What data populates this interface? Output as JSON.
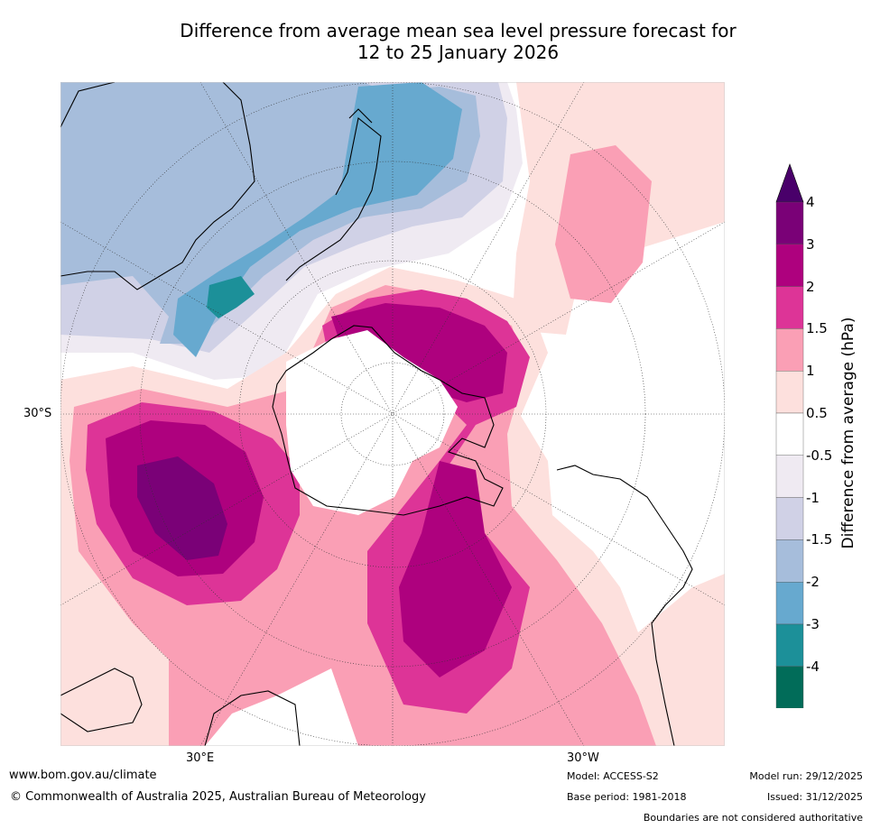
{
  "title_line1": "Difference from average mean sea level pressure forecast for",
  "title_line2": "12 to 25 January 2026",
  "map": {
    "lat_label_left": "30°S",
    "lon_label_east": "30°E",
    "lon_label_west": "30°W"
  },
  "colorbar": {
    "label": "Difference from average (hPa)",
    "ticks": [
      "4",
      "3",
      "2",
      "1.5",
      "1",
      "0.5",
      "-0.5",
      "-1",
      "-1.5",
      "-2",
      "-3",
      "-4"
    ],
    "colors": [
      "#7a0177",
      "#ae017e",
      "#dd3497",
      "#fa9fb5",
      "#fde0dd",
      "#ffffff",
      "#efeaf2",
      "#d0d1e6",
      "#a6bddb",
      "#67a9cf",
      "#1c9099",
      "#016c59"
    ],
    "over_color": "#49006a",
    "under_color": "#016450"
  },
  "footer": {
    "website": "www.bom.gov.au/climate",
    "copyright": "© Commonwealth of Australia 2025, Australian Bureau of Meteorology",
    "model": "Model: ACCESS-S2",
    "base_period": "Base period: 1981-2018",
    "model_run": "Model run: 29/12/2025",
    "issued": "Issued: 31/12/2025",
    "disclaimer": "Boundaries are not considered authoritative"
  }
}
